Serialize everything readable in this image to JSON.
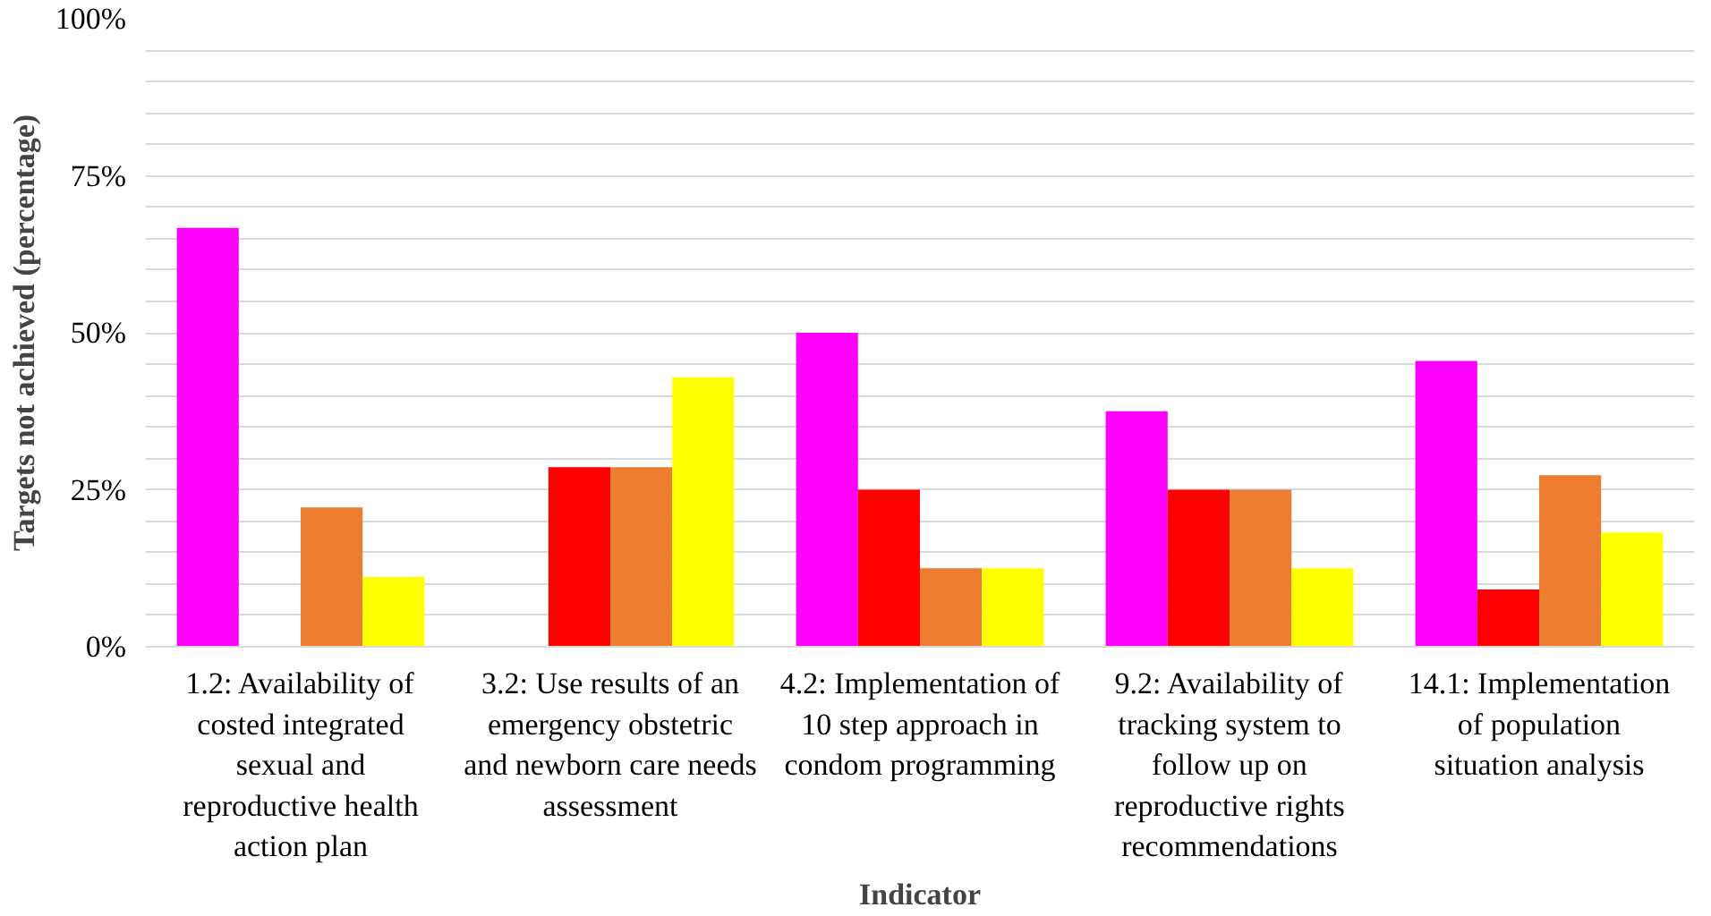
{
  "chart_data": {
    "type": "bar",
    "xlabel": "Indicator",
    "ylabel": "Targets not achieved (percentage)",
    "categories": [
      "1.2: Availability of costed integrated sexual and reproductive health action plan",
      "3.2: Use results of an emergency obstetric and newborn care needs assessment",
      "4.2: Implementation of 10 step approach in condom programming",
      "9.2: Availability of tracking system to follow up on reproductive rights recommendations",
      "14.1: Implementation of population situation analysis"
    ],
    "series": [
      {
        "color": "#ff00ff",
        "values": [
          66.7,
          0,
          50,
          37.5,
          45.5
        ]
      },
      {
        "color": "#ff0000",
        "values": [
          0,
          28.6,
          25,
          25,
          9.1
        ]
      },
      {
        "color": "#ed7d31",
        "values": [
          22.2,
          28.6,
          12.5,
          25,
          27.3
        ]
      },
      {
        "color": "#ffff00",
        "values": [
          11.1,
          42.9,
          12.5,
          12.5,
          18.2
        ]
      }
    ],
    "ylim": [
      0,
      100
    ],
    "yticks": [
      {
        "value": 0,
        "label": "0%"
      },
      {
        "value": 5,
        "label": null
      },
      {
        "value": 10,
        "label": null
      },
      {
        "value": 15,
        "label": null
      },
      {
        "value": 20,
        "label": null
      },
      {
        "value": 25,
        "label": "25%"
      },
      {
        "value": 30,
        "label": null
      },
      {
        "value": 35,
        "label": null
      },
      {
        "value": 40,
        "label": null
      },
      {
        "value": 45,
        "label": null
      },
      {
        "value": 50,
        "label": "50%"
      },
      {
        "value": 55,
        "label": null
      },
      {
        "value": 60,
        "label": null
      },
      {
        "value": 65,
        "label": null
      },
      {
        "value": 70,
        "label": null
      },
      {
        "value": 75,
        "label": "75%"
      },
      {
        "value": 80,
        "label": null
      },
      {
        "value": 85,
        "label": null
      },
      {
        "value": 90,
        "label": null
      },
      {
        "value": 95,
        "label": null
      },
      {
        "value": 100,
        "label": "100%"
      }
    ],
    "grid": "y"
  }
}
